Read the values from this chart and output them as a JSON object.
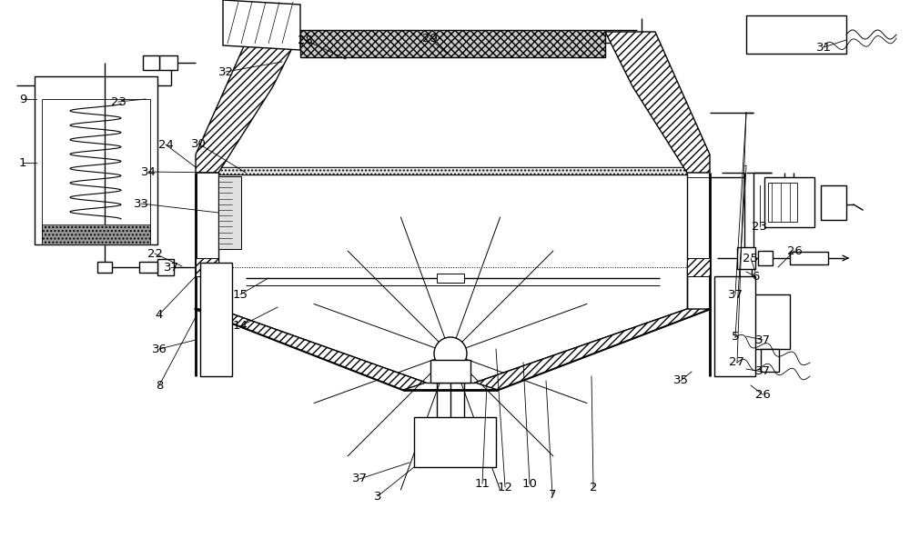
{
  "bg_color": "#ffffff",
  "line_color": "#000000",
  "lw_main": 1.0,
  "lw_thick": 2.0,
  "lw_thin": 0.7,
  "label_fontsize": 9.5,
  "fig_w": 10.0,
  "fig_h": 6.14,
  "dpi": 100
}
